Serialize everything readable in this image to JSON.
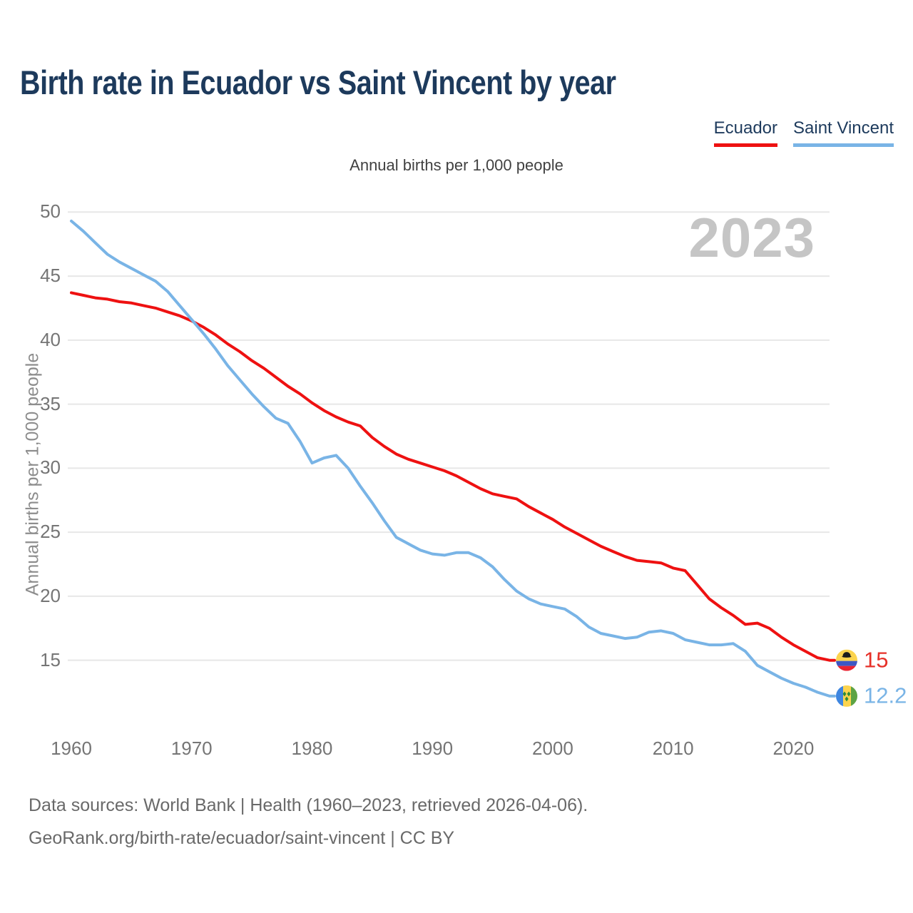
{
  "header": {
    "title": "Birth rate in Ecuador vs Saint Vincent by year"
  },
  "legend": {
    "items": [
      {
        "label": "Ecuador",
        "color": "#ee1111"
      },
      {
        "label": "Saint Vincent",
        "color": "#79b4e6"
      }
    ]
  },
  "footer": {
    "line1": "Data sources: World Bank | Health (1960–2023, retrieved 2026-04-06).",
    "line2": "GeoRank.org/birth-rate/ecuador/saint-vincent | CC BY"
  },
  "chart_data": {
    "type": "line",
    "title": "Birth rate in Ecuador vs Saint Vincent by year",
    "subtitle": "Annual births per 1,000 people",
    "ylabel": "Annual births per 1,000 people",
    "watermark": "2023",
    "grid": "horizontal",
    "legend_position": "top-right",
    "x_ticks": [
      1960,
      1970,
      1980,
      1990,
      2000,
      2010,
      2020
    ],
    "y_ticks": [
      15,
      20,
      25,
      30,
      35,
      40,
      45,
      50
    ],
    "ylim": [
      12,
      50.5
    ],
    "x": [
      1960,
      1961,
      1962,
      1963,
      1964,
      1965,
      1966,
      1967,
      1968,
      1969,
      1970,
      1971,
      1972,
      1973,
      1974,
      1975,
      1976,
      1977,
      1978,
      1979,
      1980,
      1981,
      1982,
      1983,
      1984,
      1985,
      1986,
      1987,
      1988,
      1989,
      1990,
      1991,
      1992,
      1993,
      1994,
      1995,
      1996,
      1997,
      1998,
      1999,
      2000,
      2001,
      2002,
      2003,
      2004,
      2005,
      2006,
      2007,
      2008,
      2009,
      2010,
      2011,
      2012,
      2013,
      2014,
      2015,
      2016,
      2017,
      2018,
      2019,
      2020,
      2021,
      2022,
      2023
    ],
    "series": [
      {
        "name": "Ecuador",
        "color": "#ee1111",
        "end_label": "15",
        "flag": "ecuador",
        "values": [
          43.7,
          43.5,
          43.3,
          43.2,
          43.0,
          42.9,
          42.7,
          42.5,
          42.2,
          41.9,
          41.5,
          41.0,
          40.4,
          39.7,
          39.1,
          38.4,
          37.8,
          37.1,
          36.4,
          35.8,
          35.1,
          34.5,
          34.0,
          33.6,
          33.3,
          32.4,
          31.7,
          31.1,
          30.7,
          30.4,
          30.1,
          29.8,
          29.4,
          28.9,
          28.4,
          28.0,
          27.8,
          27.6,
          27.0,
          26.5,
          26.0,
          25.4,
          24.9,
          24.4,
          23.9,
          23.5,
          23.1,
          22.8,
          22.7,
          22.6,
          22.2,
          22.0,
          20.9,
          19.8,
          19.1,
          18.5,
          17.8,
          17.9,
          17.5,
          16.8,
          16.2,
          15.7,
          15.2,
          15.0
        ]
      },
      {
        "name": "Saint Vincent",
        "color": "#79b4e6",
        "end_label": "12.2",
        "flag": "saint-vincent",
        "values": [
          49.3,
          48.5,
          47.6,
          46.7,
          46.1,
          45.6,
          45.1,
          44.6,
          43.8,
          42.7,
          41.6,
          40.5,
          39.3,
          38.0,
          36.9,
          35.8,
          34.8,
          33.9,
          33.5,
          32.1,
          30.4,
          30.8,
          31.0,
          30.0,
          28.6,
          27.3,
          25.9,
          24.6,
          24.1,
          23.6,
          23.3,
          23.2,
          23.4,
          23.4,
          23.0,
          22.3,
          21.3,
          20.4,
          19.8,
          19.4,
          19.2,
          19.0,
          18.4,
          17.6,
          17.1,
          16.9,
          16.7,
          16.8,
          17.2,
          17.3,
          17.1,
          16.6,
          16.4,
          16.2,
          16.2,
          16.3,
          15.7,
          14.6,
          14.1,
          13.6,
          13.2,
          12.9,
          12.5,
          12.2
        ]
      }
    ]
  }
}
